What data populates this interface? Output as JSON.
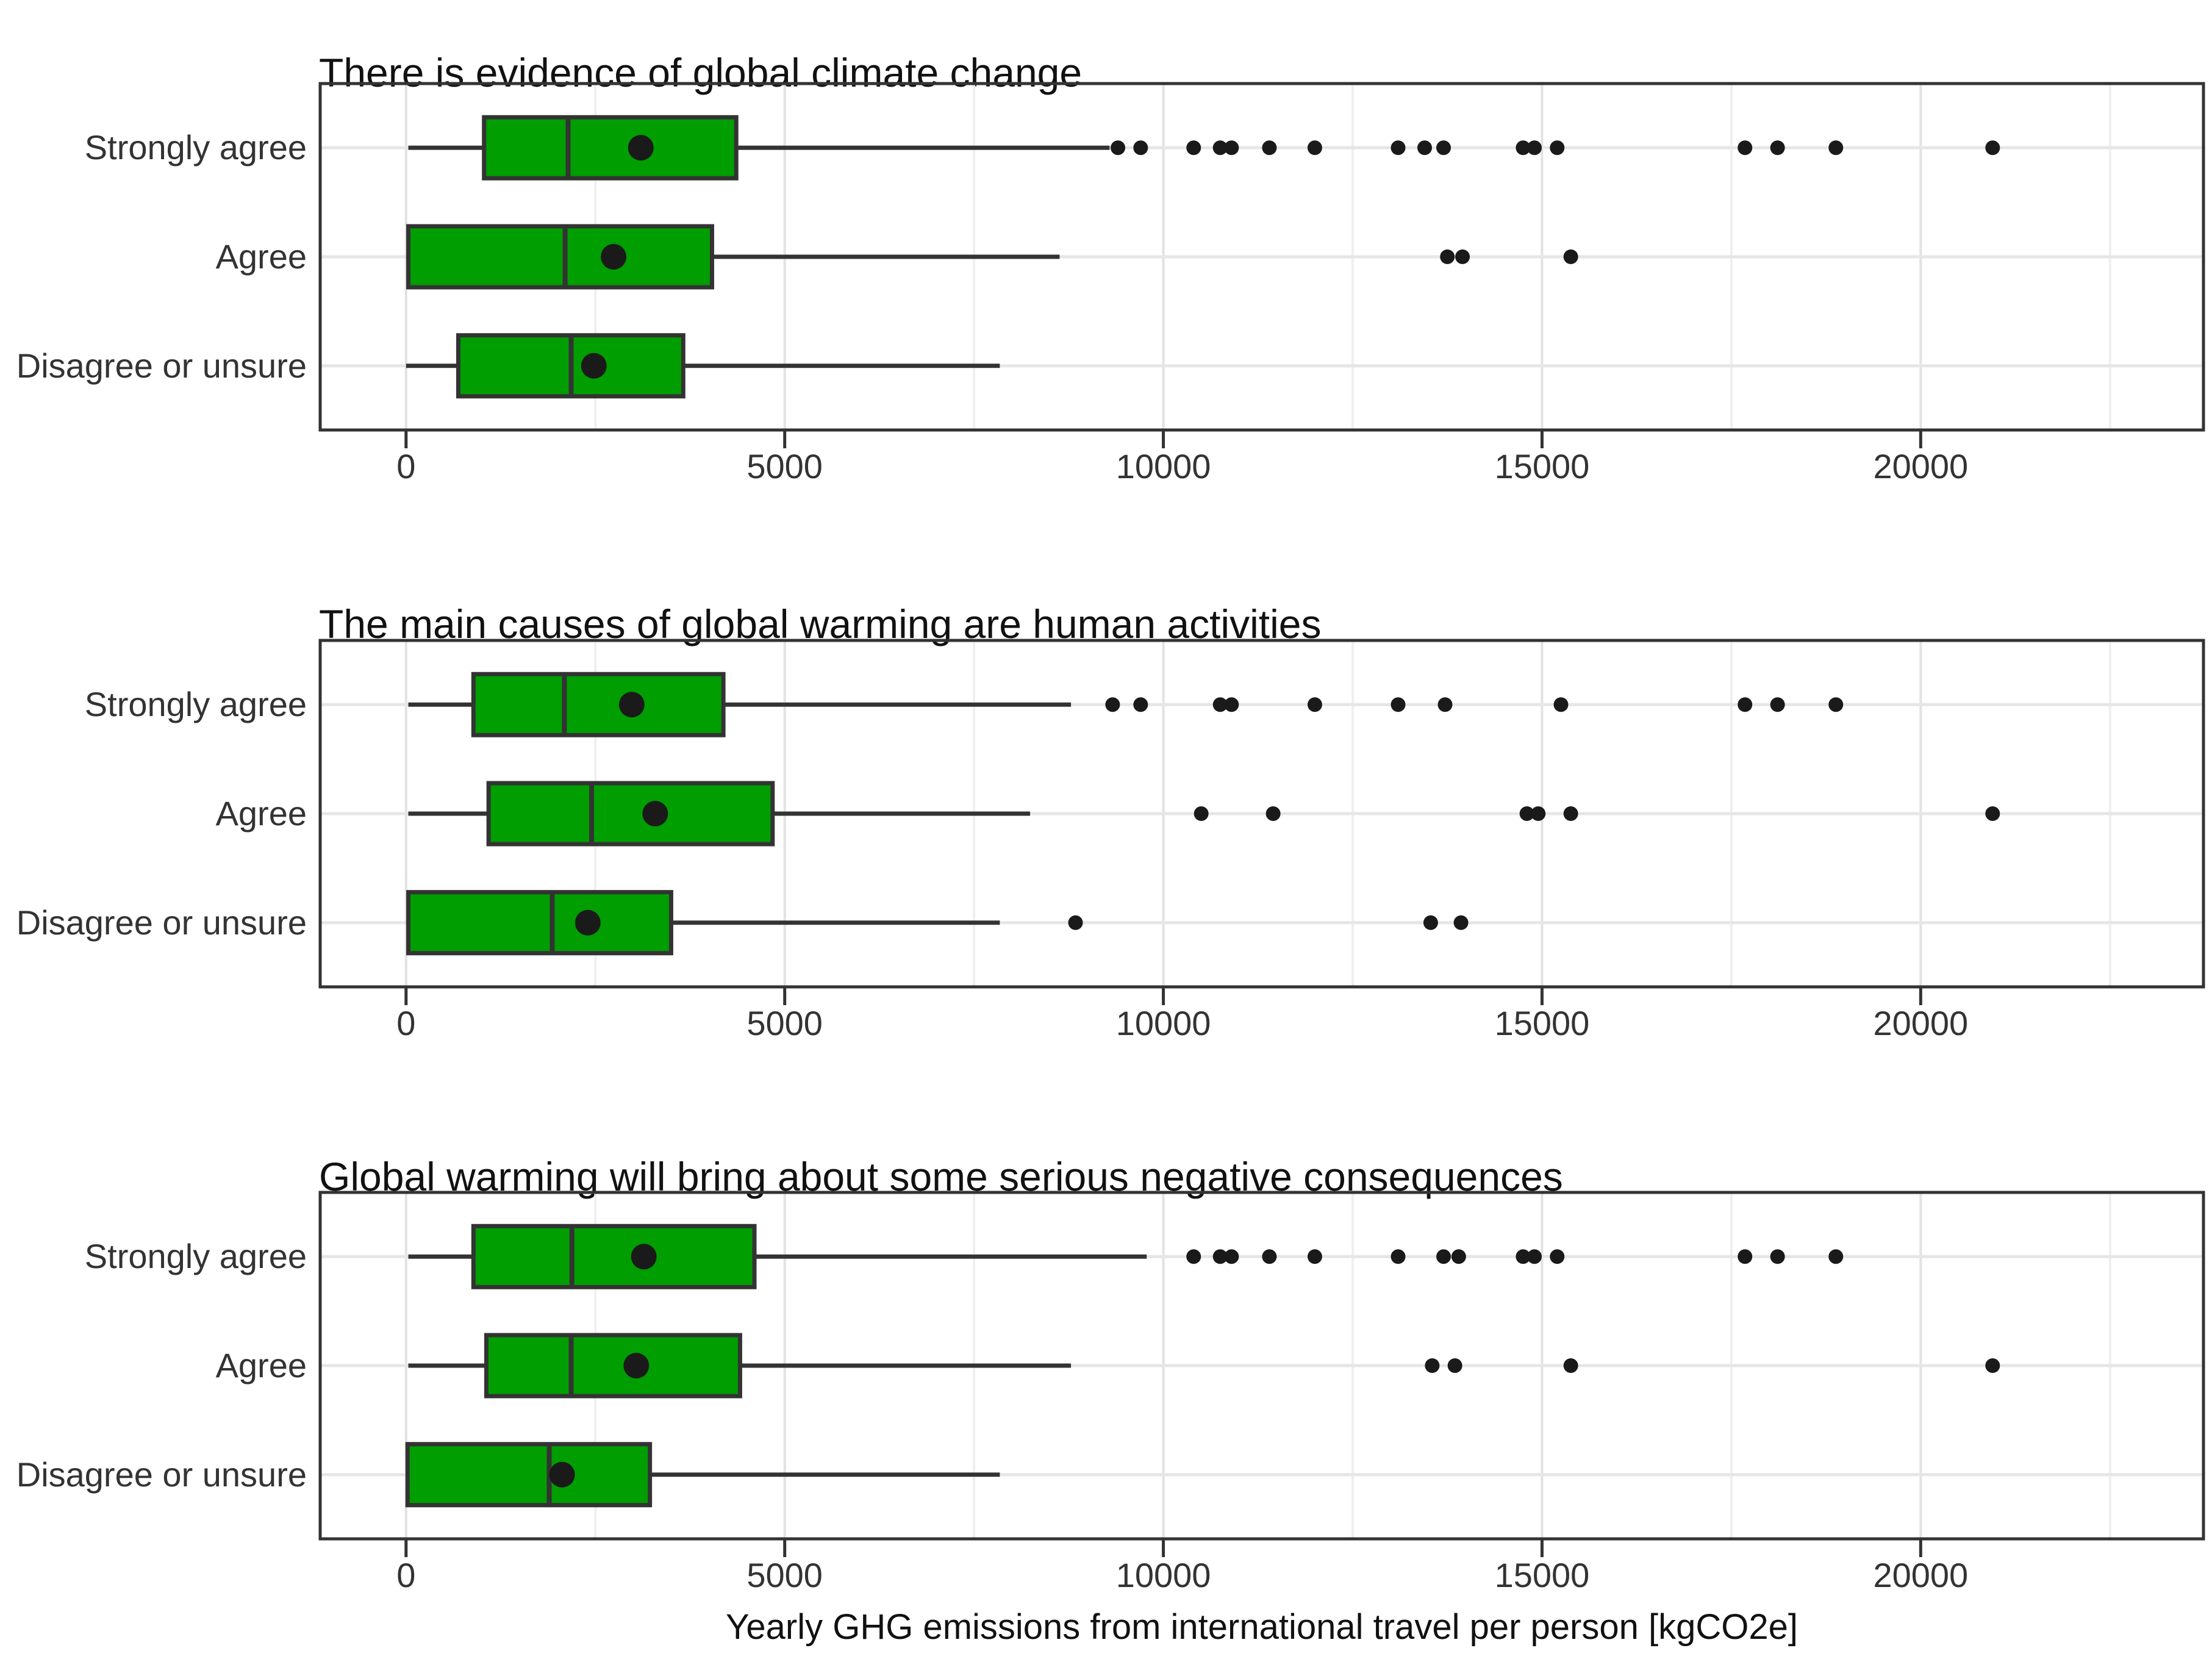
{
  "figure": {
    "background_color": "#FFFFFF",
    "box_fill_color": "#009E00",
    "stroke_color": "#333333",
    "point_color": "#1A1A1A",
    "grid_major_color": "#E2E2E2",
    "grid_minor_color": "#EFEFEF",
    "row_gridline_color": "#E6E6E6",
    "x_axis_label": "Yearly GHG emissions from international travel per person [kgCO2e]",
    "categories": [
      "Strongly agree",
      "Agree",
      "Disagree or unsure"
    ]
  },
  "chart_data": [
    {
      "type": "boxplot",
      "orientation": "horizontal",
      "title": "There is evidence of global climate change",
      "xlim": [
        -1150,
        23750
      ],
      "x_major_ticks": [
        0,
        5000,
        10000,
        15000,
        20000
      ],
      "x_minor_gridlines": [
        2500,
        7500,
        12500,
        17500,
        22500
      ],
      "grid": true,
      "legend": "none",
      "series": [
        {
          "category": "Strongly agree",
          "whisker_low": 30,
          "q1": 1030,
          "median": 2140,
          "q3": 4360,
          "whisker_high": 9290,
          "mean": 3100,
          "outliers": [
            9400,
            9700,
            10400,
            10750,
            10900,
            11400,
            12000,
            13100,
            13450,
            13700,
            14750,
            14900,
            15200,
            17680,
            18110,
            18880,
            20950
          ]
        },
        {
          "category": "Agree",
          "whisker_low": 0,
          "q1": 30,
          "median": 2100,
          "q3": 4040,
          "whisker_high": 8630,
          "mean": 2740,
          "outliers": [
            13750,
            13950,
            15380
          ]
        },
        {
          "category": "Disagree or unsure",
          "whisker_low": 0,
          "q1": 690,
          "median": 2180,
          "q3": 3660,
          "whisker_high": 7840,
          "mean": 2480,
          "outliers": []
        }
      ]
    },
    {
      "type": "boxplot",
      "orientation": "horizontal",
      "title": "The main causes of global warming are human activities",
      "xlim": [
        -1150,
        23750
      ],
      "x_major_ticks": [
        0,
        5000,
        10000,
        15000,
        20000
      ],
      "x_minor_gridlines": [
        2500,
        7500,
        12500,
        17500,
        22500
      ],
      "grid": true,
      "legend": "none",
      "series": [
        {
          "category": "Strongly agree",
          "whisker_low": 30,
          "q1": 890,
          "median": 2090,
          "q3": 4190,
          "whisker_high": 8780,
          "mean": 2980,
          "outliers": [
            9330,
            9700,
            10750,
            10900,
            12000,
            13100,
            13720,
            15250,
            17680,
            18110,
            18880
          ]
        },
        {
          "category": "Agree",
          "whisker_low": 30,
          "q1": 1090,
          "median": 2450,
          "q3": 4840,
          "whisker_high": 8240,
          "mean": 3290,
          "outliers": [
            10500,
            11450,
            14800,
            14950,
            15380,
            20950
          ]
        },
        {
          "category": "Disagree or unsure",
          "whisker_low": 0,
          "q1": 30,
          "median": 1930,
          "q3": 3500,
          "whisker_high": 7840,
          "mean": 2400,
          "outliers": [
            8840,
            13530,
            13930
          ]
        }
      ]
    },
    {
      "type": "boxplot",
      "orientation": "horizontal",
      "title": "Global warming will bring about some serious negative consequences",
      "xlim": [
        -1150,
        23750
      ],
      "x_major_ticks": [
        0,
        5000,
        10000,
        15000,
        20000
      ],
      "x_minor_gridlines": [
        2500,
        7500,
        12500,
        17500,
        22500
      ],
      "grid": true,
      "legend": "none",
      "series": [
        {
          "category": "Strongly agree",
          "whisker_low": 30,
          "q1": 890,
          "median": 2190,
          "q3": 4600,
          "whisker_high": 9780,
          "mean": 3140,
          "outliers": [
            10400,
            10750,
            10900,
            11400,
            12000,
            13100,
            13700,
            13900,
            14750,
            14900,
            15200,
            17680,
            18110,
            18880
          ]
        },
        {
          "category": "Agree",
          "whisker_low": 30,
          "q1": 1060,
          "median": 2180,
          "q3": 4410,
          "whisker_high": 8780,
          "mean": 3040,
          "outliers": [
            13550,
            13850,
            15380,
            20950
          ]
        },
        {
          "category": "Disagree or unsure",
          "whisker_low": 0,
          "q1": 20,
          "median": 1890,
          "q3": 3220,
          "whisker_high": 7840,
          "mean": 2060,
          "outliers": []
        }
      ]
    }
  ]
}
